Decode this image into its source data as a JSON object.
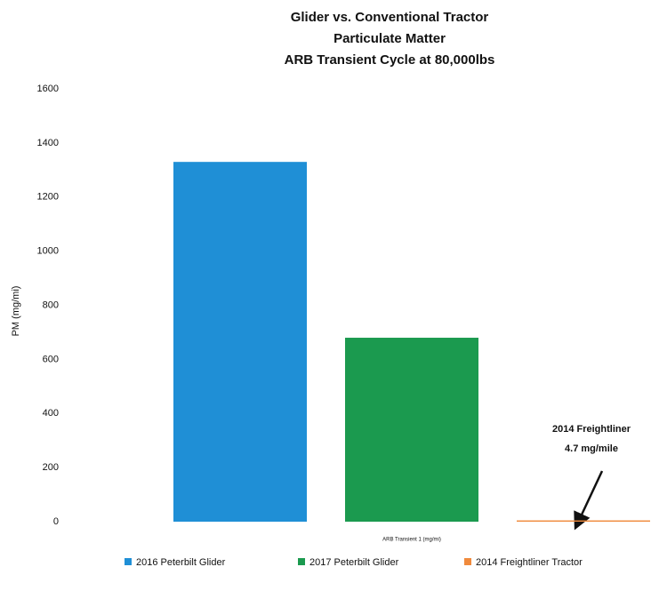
{
  "chart_data": {
    "type": "bar",
    "title": [
      "Glider vs. Conventional Tractor",
      "Particulate Matter",
      "ARB Transient Cycle at 80,000lbs"
    ],
    "y_label": "PM (mg/mi)",
    "categories": [
      "ARB Transient 1 (mg/mi)"
    ],
    "series": [
      {
        "name": "2016 Peterbilt Glider",
        "color": "#1f8fd6",
        "values": [
          1330
        ]
      },
      {
        "name": "2017 Peterbilt Glider",
        "color": "#1b9a4f",
        "values": [
          680
        ]
      },
      {
        "name": "2014 Freightliner Tractor",
        "color": "#f08a3c",
        "values": [
          4.7
        ]
      }
    ],
    "annotation": [
      "2014 Freightliner",
      "4.7 mg/mile"
    ],
    "ylim": [
      0,
      1600
    ],
    "yticks": [
      0,
      200,
      400,
      600,
      800,
      1000,
      1200,
      1400,
      1600
    ],
    "grid": false,
    "legend": "bottom"
  }
}
